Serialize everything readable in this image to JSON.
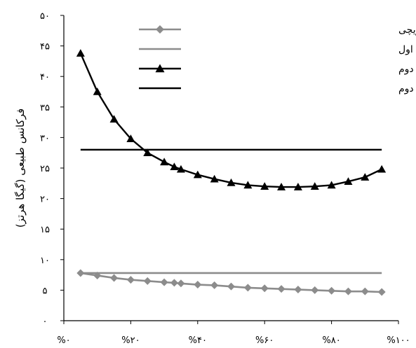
{
  "chart_data": {
    "type": "line",
    "ylabel": "فرکانس طبیعی (گیگا هرتز)",
    "xlim": [
      0,
      100
    ],
    "ylim": [
      0,
      50
    ],
    "x_ticks": [
      0,
      20,
      40,
      60,
      80,
      100
    ],
    "x_tick_labels": [
      "%۰",
      "%۲۰",
      "%۴۰",
      "%۶۰",
      "%۸۰",
      "%۱۰۰"
    ],
    "y_ticks": [
      0,
      5,
      10,
      15,
      20,
      25,
      30,
      35,
      40,
      45,
      50
    ],
    "y_tick_labels": [
      "۰",
      "۵",
      "۱۰",
      "۱۵",
      "۲۰",
      "۲۵",
      "۳۰",
      "۳۵",
      "۴۰",
      "۴۵",
      "۵۰"
    ],
    "grid": false,
    "legend_position": "top-right",
    "series": [
      {
        "name": "فرکانس اول/مدل تیر ساندویچی",
        "color": "#8c8c8c",
        "marker": "diamond",
        "x": [
          5,
          10,
          15,
          20,
          25,
          30,
          33,
          35,
          40,
          45,
          50,
          55,
          60,
          65,
          70,
          75,
          80,
          85,
          90,
          95
        ],
        "y": [
          7.8,
          7.4,
          7.0,
          6.7,
          6.5,
          6.3,
          6.2,
          6.1,
          5.9,
          5.8,
          5.6,
          5.4,
          5.3,
          5.2,
          5.1,
          5.0,
          4.9,
          4.8,
          4.8,
          4.7
        ]
      },
      {
        "name": "شبیه سازی دینامیک مولکولی/فرکانس اول",
        "color": "#8c8c8c",
        "marker": "none",
        "x": [
          5,
          95
        ],
        "y": [
          7.8,
          7.8
        ]
      },
      {
        "name": "مدل تیر ساندویچی/فرکانس دوم",
        "color": "#000000",
        "marker": "triangle",
        "x": [
          5,
          10,
          15,
          20,
          25,
          30,
          33,
          35,
          40,
          45,
          50,
          55,
          60,
          65,
          70,
          75,
          80,
          85,
          90,
          95
        ],
        "y": [
          43.8,
          37.5,
          33.0,
          29.8,
          27.5,
          26.0,
          25.2,
          24.8,
          23.9,
          23.2,
          22.6,
          22.2,
          22.0,
          21.9,
          21.9,
          22.0,
          22.2,
          22.8,
          23.5,
          24.8
        ]
      },
      {
        "name": "شبیه سازی دینامیک مولکولی/فرکانس دوم",
        "color": "#000000",
        "marker": "none",
        "x": [
          5,
          95
        ],
        "y": [
          28.0,
          28.0
        ]
      }
    ]
  }
}
